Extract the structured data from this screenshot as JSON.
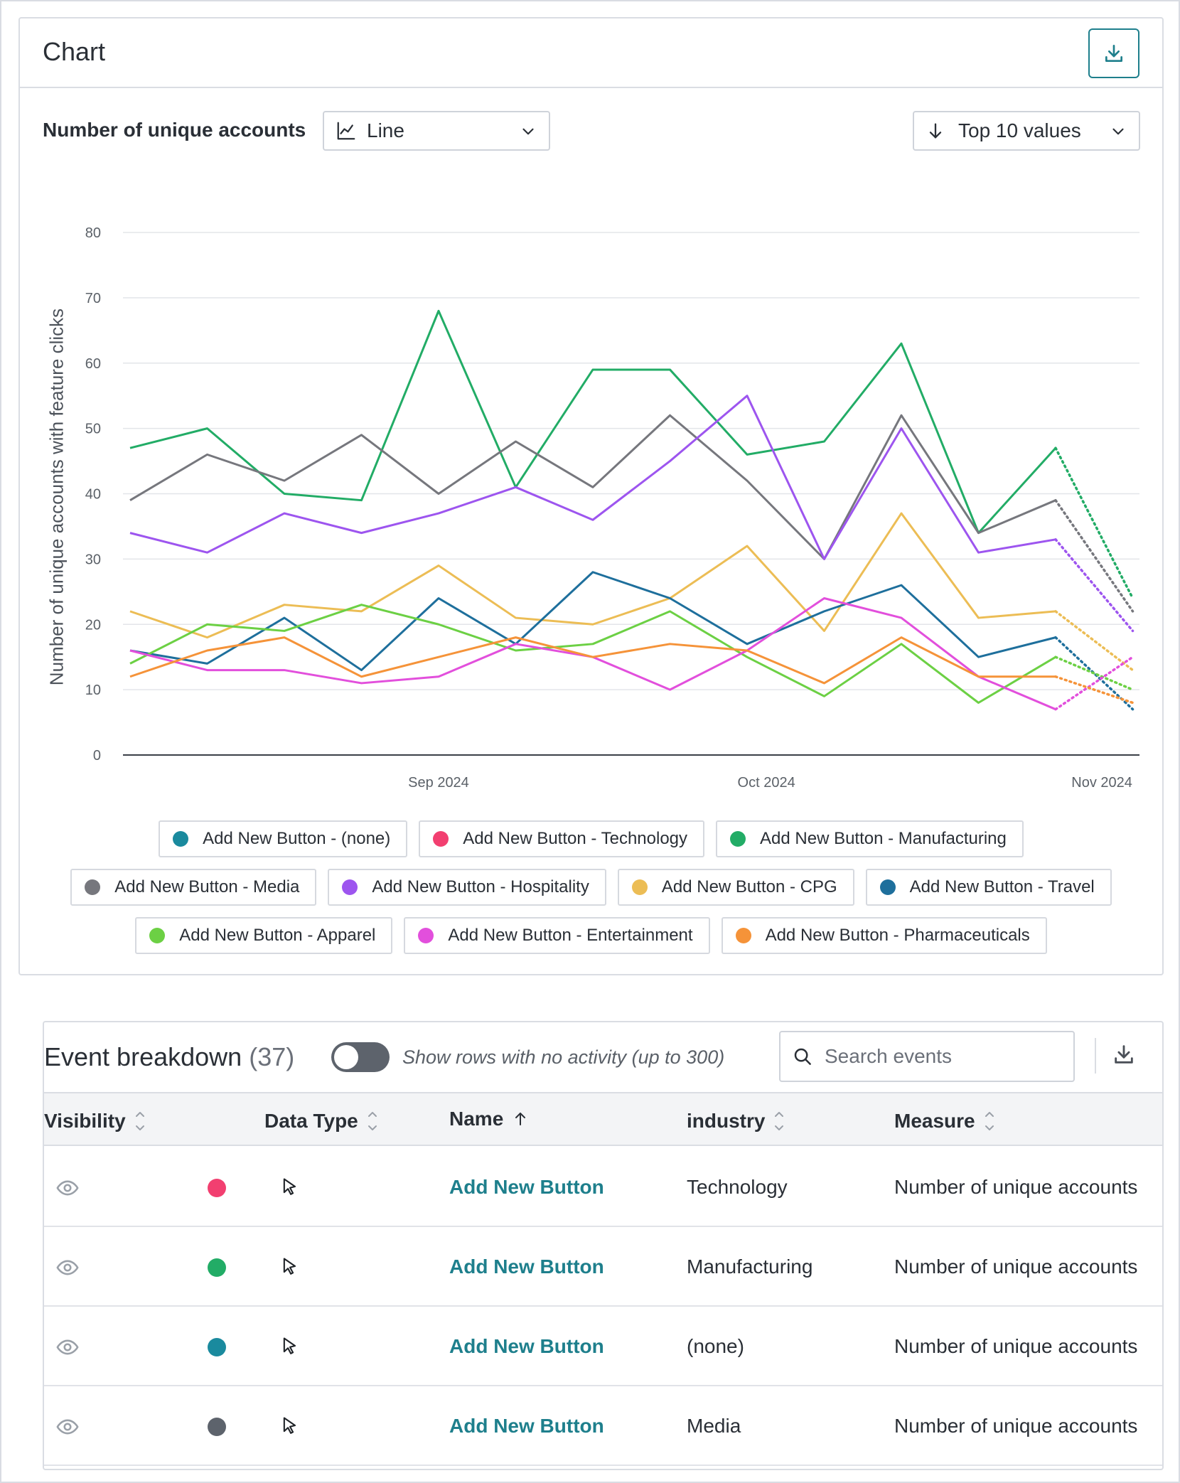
{
  "card": {
    "title": "Chart",
    "download_icon": "download-icon",
    "measure_label": "Number of unique accounts",
    "chart_type": {
      "label": "Line",
      "icon": "line-chart-icon"
    },
    "sort": {
      "label": "Top 10 values",
      "icon": "arrow-down-icon"
    }
  },
  "chart_data": {
    "type": "line",
    "ylabel": "Number of unique accounts with feature clicks",
    "xlabel": "",
    "ylim": [
      0,
      80
    ],
    "yticks": [
      "0",
      "10",
      "20",
      "30",
      "40",
      "50",
      "60",
      "70",
      "80"
    ],
    "xticks": [
      {
        "label": "Sep 2024",
        "index": 4
      },
      {
        "label": "Oct 2024",
        "index": 8.25
      },
      {
        "label": "Nov 2024",
        "index": 12.6
      }
    ],
    "x_count": 14,
    "partial_from_index": 12,
    "series": [
      {
        "name": "Add New Button - (none)",
        "color": "#1a8a9e",
        "values": []
      },
      {
        "name": "Add New Button - Technology",
        "color": "#f23f70",
        "values": []
      },
      {
        "name": "Add New Button - Manufacturing",
        "color": "#22ac66",
        "values": [
          47,
          50,
          40,
          39,
          68,
          41,
          59,
          59,
          46,
          48,
          63,
          34,
          47,
          24
        ]
      },
      {
        "name": "Add New Button - Media",
        "color": "#76777d",
        "values": [
          39,
          46,
          42,
          49,
          40,
          48,
          41,
          52,
          42,
          30,
          52,
          34,
          39,
          22
        ]
      },
      {
        "name": "Add New Button - Hospitality",
        "color": "#9d55ef",
        "values": [
          34,
          31,
          37,
          34,
          37,
          41,
          36,
          45,
          55,
          30,
          50,
          31,
          33,
          19
        ]
      },
      {
        "name": "Add New Button - CPG",
        "color": "#ecbd55",
        "values": [
          22,
          18,
          23,
          22,
          29,
          21,
          20,
          24,
          32,
          19,
          37,
          21,
          22,
          13
        ]
      },
      {
        "name": "Add New Button - Travel",
        "color": "#1e6f9c",
        "values": [
          16,
          14,
          21,
          13,
          24,
          17,
          28,
          24,
          17,
          22,
          26,
          15,
          18,
          7
        ]
      },
      {
        "name": "Add New Button - Apparel",
        "color": "#6cd044",
        "values": [
          14,
          20,
          19,
          23,
          20,
          16,
          17,
          22,
          15,
          9,
          17,
          8,
          15,
          10
        ]
      },
      {
        "name": "Add New Button - Entertainment",
        "color": "#e24fdc",
        "values": [
          16,
          13,
          13,
          11,
          12,
          17,
          15,
          10,
          16,
          24,
          21,
          12,
          7,
          15
        ]
      },
      {
        "name": "Add New Button - Pharmaceuticals",
        "color": "#f59339",
        "values": [
          12,
          16,
          18,
          12,
          15,
          18,
          15,
          17,
          16,
          11,
          18,
          12,
          12,
          8
        ]
      }
    ]
  },
  "legend_rows": [
    [
      0,
      1,
      2
    ],
    [
      3,
      4,
      5,
      6
    ],
    [
      7,
      8,
      9
    ]
  ],
  "breakdown": {
    "title": "Event breakdown",
    "count": "(37)",
    "toggle_label": "Show rows with no activity (up to 300)",
    "search_placeholder": "Search events",
    "columns": {
      "visibility": "Visibility",
      "data_type": "Data Type",
      "name": "Name",
      "industry": "industry",
      "measure": "Measure"
    },
    "rows": [
      {
        "color": "#f23f70",
        "name": "Add New Button",
        "industry": "Technology",
        "measure": "Number of unique accounts"
      },
      {
        "color": "#22ac66",
        "name": "Add New Button",
        "industry": "Manufacturing",
        "measure": "Number of unique accounts"
      },
      {
        "color": "#1a8a9e",
        "name": "Add New Button",
        "industry": "(none)",
        "measure": "Number of unique accounts"
      },
      {
        "color": "#5d636c",
        "name": "Add New Button",
        "industry": "Media",
        "measure": "Number of unique accounts"
      }
    ]
  }
}
